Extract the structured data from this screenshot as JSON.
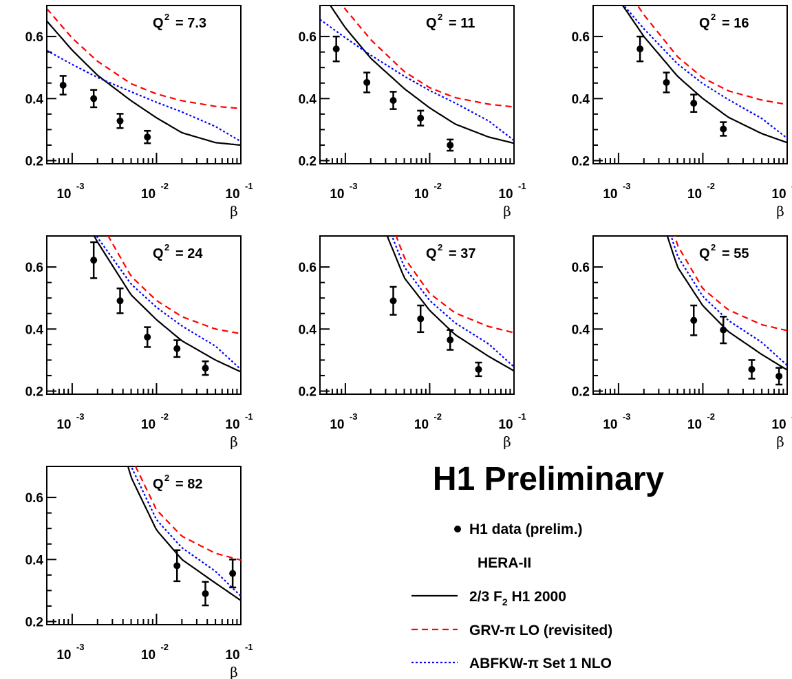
{
  "chart_data": {
    "type": "scatter",
    "xlabel": "β",
    "x_scale": "log",
    "xlim": [
      0.0005,
      0.1
    ],
    "ylim": [
      0.19,
      0.7
    ],
    "y_ticks": [
      "0.2",
      "0.4",
      "0.6"
    ],
    "x_tick_base": "10",
    "x_tick_exponents": [
      "-3",
      "-2",
      "-1"
    ],
    "grid": false,
    "preliminary_label": "H1 Preliminary",
    "legend": {
      "placement": "bottom-right",
      "entries": [
        {
          "id": "data",
          "label": "H1 data (prelim.)",
          "style": "marker",
          "color": "#000000"
        },
        {
          "id": "hera",
          "label": "HERA-II",
          "style": "none",
          "color": "#000000"
        },
        {
          "id": "f2",
          "label_prefix": "2/3 F",
          "label_sub": "2",
          "label_suffix": "  H1 2000",
          "style": "solid",
          "color": "#000000"
        },
        {
          "id": "grv",
          "label": "GRV-π LO (revisited)",
          "style": "dashed",
          "color": "#ff0000"
        },
        {
          "id": "abfkw",
          "label": "ABFKW-π Set 1 NLO",
          "style": "dotted",
          "color": "#0000ff"
        }
      ]
    },
    "panels": [
      {
        "q2_label": "Q",
        "q2_sup": "2",
        "q2_value": "= 7.3",
        "data": [
          {
            "x": 0.00078,
            "y": 0.443,
            "err": 0.03
          },
          {
            "x": 0.0018,
            "y": 0.4,
            "err": 0.028
          },
          {
            "x": 0.0037,
            "y": 0.328,
            "err": 0.023
          },
          {
            "x": 0.0078,
            "y": 0.276,
            "err": 0.02
          }
        ],
        "curves": {
          "f2": {
            "x": [
              0.0005,
              0.001,
              0.002,
              0.005,
              0.01,
              0.02,
              0.05,
              0.1
            ],
            "y": [
              0.65,
              0.556,
              0.475,
              0.393,
              0.338,
              0.29,
              0.258,
              0.25
            ]
          },
          "grv": {
            "x": [
              0.0005,
              0.001,
              0.002,
              0.005,
              0.01,
              0.02,
              0.05,
              0.1
            ],
            "y": [
              0.69,
              0.595,
              0.52,
              0.448,
              0.415,
              0.393,
              0.375,
              0.368
            ]
          },
          "abfkw": {
            "x": [
              0.0005,
              0.001,
              0.002,
              0.005,
              0.01,
              0.02,
              0.05,
              0.1
            ],
            "y": [
              0.555,
              0.51,
              0.468,
              0.422,
              0.388,
              0.357,
              0.31,
              0.262
            ]
          }
        }
      },
      {
        "q2_label": "Q",
        "q2_sup": "2",
        "q2_value": "= 11",
        "data": [
          {
            "x": 0.00078,
            "y": 0.56,
            "err": 0.04
          },
          {
            "x": 0.0018,
            "y": 0.452,
            "err": 0.032
          },
          {
            "x": 0.0037,
            "y": 0.394,
            "err": 0.028
          },
          {
            "x": 0.0078,
            "y": 0.337,
            "err": 0.024
          },
          {
            "x": 0.0175,
            "y": 0.25,
            "err": 0.018
          }
        ],
        "curves": {
          "f2": {
            "x": [
              0.0005,
              0.001,
              0.002,
              0.005,
              0.01,
              0.02,
              0.05,
              0.1
            ],
            "y": [
              0.75,
              0.628,
              0.53,
              0.432,
              0.37,
              0.318,
              0.276,
              0.256
            ]
          },
          "grv": {
            "x": [
              0.0005,
              0.001,
              0.002,
              0.005,
              0.01,
              0.02,
              0.05,
              0.1
            ],
            "y": [
              0.8,
              0.688,
              0.59,
              0.487,
              0.435,
              0.403,
              0.382,
              0.373
            ]
          },
          "abfkw": {
            "x": [
              0.0005,
              0.001,
              0.002,
              0.005,
              0.01,
              0.02,
              0.05,
              0.1
            ],
            "y": [
              0.655,
              0.596,
              0.54,
              0.472,
              0.426,
              0.386,
              0.328,
              0.265
            ]
          }
        }
      },
      {
        "q2_label": "Q",
        "q2_sup": "2",
        "q2_value": "= 16",
        "data": [
          {
            "x": 0.0018,
            "y": 0.56,
            "err": 0.04
          },
          {
            "x": 0.0037,
            "y": 0.452,
            "err": 0.032
          },
          {
            "x": 0.0078,
            "y": 0.385,
            "err": 0.028
          },
          {
            "x": 0.0175,
            "y": 0.302,
            "err": 0.022
          }
        ],
        "curves": {
          "f2": {
            "x": [
              0.0005,
              0.001,
              0.002,
              0.005,
              0.01,
              0.02,
              0.05,
              0.1
            ],
            "y": [
              0.85,
              0.72,
              0.6,
              0.472,
              0.4,
              0.34,
              0.287,
              0.258
            ]
          },
          "grv": {
            "x": [
              0.0005,
              0.001,
              0.002,
              0.005,
              0.01,
              0.02,
              0.05,
              0.1
            ],
            "y": [
              0.92,
              0.79,
              0.67,
              0.535,
              0.467,
              0.425,
              0.395,
              0.381
            ]
          },
          "abfkw": {
            "x": [
              0.0005,
              0.001,
              0.002,
              0.005,
              0.01,
              0.02,
              0.05,
              0.1
            ],
            "y": [
              0.82,
              0.72,
              0.625,
              0.512,
              0.448,
              0.397,
              0.336,
              0.272
            ]
          }
        }
      },
      {
        "q2_label": "Q",
        "q2_sup": "2",
        "q2_value": "= 24",
        "data": [
          {
            "x": 0.0018,
            "y": 0.622,
            "err": 0.058
          },
          {
            "x": 0.0037,
            "y": 0.491,
            "err": 0.04
          },
          {
            "x": 0.0078,
            "y": 0.374,
            "err": 0.032
          },
          {
            "x": 0.0175,
            "y": 0.337,
            "err": 0.027
          },
          {
            "x": 0.038,
            "y": 0.274,
            "err": 0.022
          }
        ],
        "curves": {
          "f2": {
            "x": [
              0.0005,
              0.001,
              0.002,
              0.005,
              0.01,
              0.02,
              0.05,
              0.1
            ],
            "y": [
              0.98,
              0.83,
              0.68,
              0.51,
              0.43,
              0.362,
              0.3,
              0.262
            ]
          },
          "grv": {
            "x": [
              0.0005,
              0.001,
              0.002,
              0.005,
              0.01,
              0.02,
              0.05,
              0.1
            ],
            "y": [
              1.05,
              0.91,
              0.76,
              0.57,
              0.492,
              0.44,
              0.4,
              0.385
            ]
          },
          "abfkw": {
            "x": [
              0.0005,
              0.001,
              0.002,
              0.005,
              0.01,
              0.02,
              0.05,
              0.1
            ],
            "y": [
              0.96,
              0.835,
              0.695,
              0.545,
              0.47,
              0.41,
              0.345,
              0.27
            ]
          }
        }
      },
      {
        "q2_label": "Q",
        "q2_sup": "2",
        "q2_value": "= 37",
        "data": [
          {
            "x": 0.0037,
            "y": 0.491,
            "err": 0.045
          },
          {
            "x": 0.0078,
            "y": 0.433,
            "err": 0.043
          },
          {
            "x": 0.0175,
            "y": 0.365,
            "err": 0.032
          },
          {
            "x": 0.038,
            "y": 0.27,
            "err": 0.022
          }
        ],
        "curves": {
          "f2": {
            "x": [
              0.0005,
              0.001,
              0.002,
              0.005,
              0.01,
              0.02,
              0.05,
              0.1
            ],
            "y": [
              1.15,
              1.0,
              0.83,
              0.565,
              0.46,
              0.382,
              0.312,
              0.265
            ]
          },
          "grv": {
            "x": [
              0.0005,
              0.001,
              0.002,
              0.005,
              0.01,
              0.02,
              0.05,
              0.1
            ],
            "y": [
              1.25,
              1.09,
              0.92,
              0.63,
              0.515,
              0.452,
              0.408,
              0.388
            ]
          },
          "abfkw": {
            "x": [
              0.0005,
              0.001,
              0.002,
              0.005,
              0.01,
              0.02,
              0.05,
              0.1
            ],
            "y": [
              1.2,
              1.03,
              0.87,
              0.6,
              0.492,
              0.42,
              0.352,
              0.278
            ]
          }
        }
      },
      {
        "q2_label": "Q",
        "q2_sup": "2",
        "q2_value": "= 55",
        "data": [
          {
            "x": 0.0078,
            "y": 0.428,
            "err": 0.048
          },
          {
            "x": 0.0175,
            "y": 0.397,
            "err": 0.043
          },
          {
            "x": 0.038,
            "y": 0.27,
            "err": 0.03
          },
          {
            "x": 0.08,
            "y": 0.248,
            "err": 0.027
          }
        ],
        "curves": {
          "f2": {
            "x": [
              0.0005,
              0.001,
              0.002,
              0.005,
              0.01,
              0.02,
              0.05,
              0.1
            ],
            "y": [
              1.3,
              1.12,
              0.93,
              0.6,
              0.475,
              0.392,
              0.318,
              0.268
            ]
          },
          "grv": {
            "x": [
              0.0005,
              0.001,
              0.002,
              0.005,
              0.01,
              0.02,
              0.05,
              0.1
            ],
            "y": [
              1.4,
              1.22,
              1.03,
              0.67,
              0.53,
              0.462,
              0.414,
              0.395
            ]
          },
          "abfkw": {
            "x": [
              0.0005,
              0.001,
              0.002,
              0.005,
              0.01,
              0.02,
              0.05,
              0.1
            ],
            "y": [
              1.35,
              1.17,
              0.98,
              0.635,
              0.505,
              0.428,
              0.357,
              0.283
            ]
          }
        }
      },
      {
        "q2_label": "Q",
        "q2_sup": "2",
        "q2_value": "= 82",
        "data": [
          {
            "x": 0.0175,
            "y": 0.38,
            "err": 0.05
          },
          {
            "x": 0.038,
            "y": 0.29,
            "err": 0.038
          },
          {
            "x": 0.08,
            "y": 0.355,
            "err": 0.045
          }
        ],
        "curves": {
          "f2": {
            "x": [
              0.0005,
              0.001,
              0.002,
              0.005,
              0.01,
              0.02,
              0.05,
              0.1
            ],
            "y": [
              1.45,
              1.25,
              1.05,
              0.665,
              0.495,
              0.4,
              0.324,
              0.268
            ]
          },
          "grv": {
            "x": [
              0.0005,
              0.001,
              0.002,
              0.005,
              0.01,
              0.02,
              0.05,
              0.1
            ],
            "y": [
              1.55,
              1.35,
              1.15,
              0.73,
              0.56,
              0.475,
              0.42,
              0.398
            ]
          },
          "abfkw": {
            "x": [
              0.0005,
              0.001,
              0.002,
              0.005,
              0.01,
              0.02,
              0.05,
              0.1
            ],
            "y": [
              1.5,
              1.3,
              1.1,
              0.7,
              0.528,
              0.438,
              0.362,
              0.282
            ]
          }
        }
      }
    ]
  }
}
